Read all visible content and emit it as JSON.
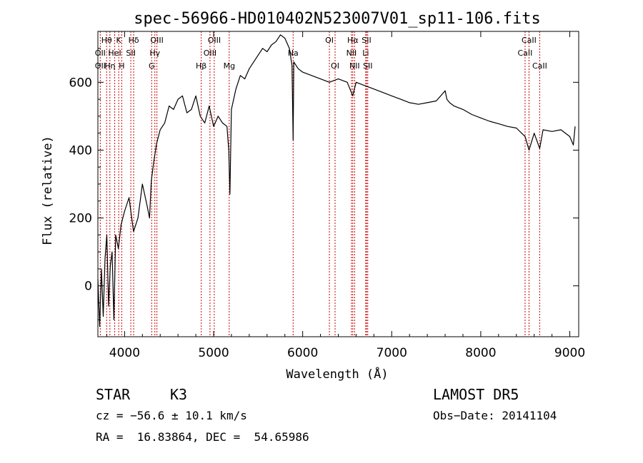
{
  "chart_data": {
    "type": "line",
    "title": "spec-56966-HD010402N523007V01_sp11-106.fits",
    "xlabel": "Wavelength (Å)",
    "ylabel": "Flux (relative)",
    "xlim": [
      3700,
      9100
    ],
    "ylim": [
      -150,
      750
    ],
    "xticks": [
      4000,
      5000,
      6000,
      7000,
      8000,
      9000
    ],
    "yticks": [
      0,
      200,
      400,
      600
    ],
    "grid": false,
    "line_color": "#000000",
    "marker_color": "#cc0000",
    "series": [
      {
        "x": [
          3700,
          3720,
          3740,
          3760,
          3780,
          3800,
          3820,
          3840,
          3860,
          3880,
          3900,
          3930,
          3960,
          4000,
          4050,
          4100,
          4150,
          4200,
          4250,
          4280,
          4300,
          4330,
          4360,
          4400,
          4450,
          4500,
          4550,
          4600,
          4650,
          4700,
          4750,
          4800,
          4850,
          4900,
          4950,
          5000,
          5050,
          5100,
          5150,
          5170,
          5183,
          5200,
          5250,
          5300,
          5350,
          5400,
          5450,
          5500,
          5550,
          5600,
          5650,
          5700,
          5750,
          5800,
          5850,
          5880,
          5893,
          5900,
          5950,
          6000,
          6100,
          6200,
          6300,
          6400,
          6500,
          6563,
          6600,
          6700,
          6800,
          6900,
          7000,
          7100,
          7200,
          7300,
          7400,
          7500,
          7600,
          7620,
          7650,
          7700,
          7800,
          7900,
          8000,
          8100,
          8200,
          8300,
          8400,
          8498,
          8542,
          8600,
          8662,
          8700,
          8800,
          8900,
          9000,
          9040,
          9060
        ],
        "y": [
          20,
          -120,
          50,
          -90,
          80,
          150,
          -60,
          60,
          100,
          -100,
          150,
          110,
          180,
          220,
          260,
          160,
          200,
          300,
          240,
          200,
          310,
          370,
          420,
          460,
          480,
          530,
          520,
          550,
          560,
          510,
          520,
          560,
          500,
          480,
          530,
          470,
          500,
          480,
          470,
          400,
          270,
          520,
          580,
          620,
          610,
          640,
          660,
          680,
          700,
          690,
          710,
          720,
          740,
          730,
          700,
          650,
          430,
          660,
          640,
          630,
          620,
          610,
          600,
          610,
          600,
          560,
          600,
          590,
          580,
          570,
          560,
          550,
          540,
          535,
          540,
          545,
          575,
          550,
          540,
          530,
          520,
          505,
          495,
          485,
          478,
          470,
          465,
          440,
          400,
          450,
          405,
          460,
          455,
          460,
          440,
          415,
          470
        ]
      }
    ],
    "line_labels": [
      {
        "label": "Hθ",
        "x": 3798,
        "row": 1
      },
      {
        "label": "K",
        "x": 3934,
        "row": 1
      },
      {
        "label": "Hδ",
        "x": 4102,
        "row": 1
      },
      {
        "label": "OIII",
        "x": 4363,
        "row": 1
      },
      {
        "label": "OIII",
        "x": 5007,
        "row": 1
      },
      {
        "label": "OI",
        "x": 6300,
        "row": 1
      },
      {
        "label": "Hα",
        "x": 6563,
        "row": 1
      },
      {
        "label": "SII",
        "x": 6717,
        "row": 1
      },
      {
        "label": "CaII",
        "x": 8542,
        "row": 1
      },
      {
        "label": "OII",
        "x": 3727,
        "row": 2
      },
      {
        "label": "HeI",
        "x": 3889,
        "row": 2
      },
      {
        "label": "SII",
        "x": 4070,
        "row": 2
      },
      {
        "label": "Hγ",
        "x": 4340,
        "row": 2
      },
      {
        "label": "OIII",
        "x": 4959,
        "row": 2
      },
      {
        "label": "NII",
        "x": 6548,
        "row": 2
      },
      {
        "label": "Li",
        "x": 6708,
        "row": 2
      },
      {
        "label": "CaII",
        "x": 8498,
        "row": 2
      },
      {
        "label": "OII",
        "x": 3727,
        "row": 3
      },
      {
        "label": "Hη",
        "x": 3835,
        "row": 3
      },
      {
        "label": "H",
        "x": 3968,
        "row": 3
      },
      {
        "label": "G",
        "x": 4304,
        "row": 3
      },
      {
        "label": "Hβ",
        "x": 4861,
        "row": 3
      },
      {
        "label": "Mg",
        "x": 5175,
        "row": 3
      },
      {
        "label": "Na",
        "x": 5893,
        "row": 2
      },
      {
        "label": "OI",
        "x": 6364,
        "row": 3
      },
      {
        "label": "NII",
        "x": 6583,
        "row": 3
      },
      {
        "label": "SII",
        "x": 6731,
        "row": 3
      },
      {
        "label": "CaII",
        "x": 8662,
        "row": 3
      }
    ],
    "marker_lines": [
      3727,
      3798,
      3835,
      3889,
      3934,
      3968,
      4070,
      4102,
      4304,
      4340,
      4363,
      4861,
      4959,
      5007,
      5175,
      5893,
      6300,
      6364,
      6548,
      6563,
      6583,
      6708,
      6717,
      6731,
      8498,
      8542,
      8662
    ]
  },
  "footer": {
    "class_label": "STAR",
    "subclass": "K3",
    "survey": "LAMOST DR5",
    "cz": "cz = −56.6 ± 10.1 km/s",
    "obs_date": "Obs−Date: 20141104",
    "coords": "RA =  16.83864, DEC =  54.65986"
  }
}
